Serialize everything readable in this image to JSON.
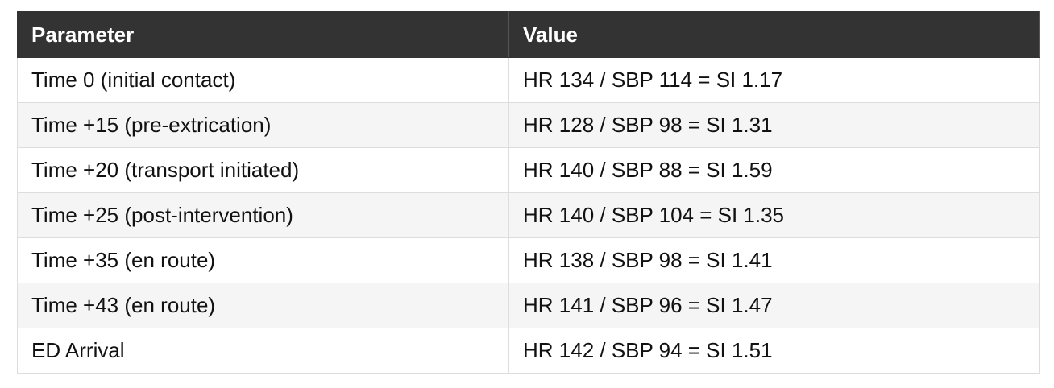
{
  "table": {
    "headers": [
      "Parameter",
      "Value"
    ],
    "rows": [
      [
        "Time 0 (initial contact)",
        "HR 134 / SBP 114 = SI 1.17"
      ],
      [
        "Time +15 (pre-extrication)",
        "HR 128 / SBP 98 = SI 1.31"
      ],
      [
        "Time +20 (transport initiated)",
        "HR 140 / SBP 88 = SI 1.59"
      ],
      [
        "Time +25 (post-intervention)",
        "HR 140 / SBP 104 = SI 1.35"
      ],
      [
        "Time +35 (en route)",
        "HR 138 / SBP 98 = SI 1.41"
      ],
      [
        "Time +43 (en route)",
        "HR 141 / SBP 96 = SI 1.47"
      ],
      [
        "ED Arrival",
        "HR 142 / SBP 94 = SI 1.51"
      ]
    ]
  }
}
